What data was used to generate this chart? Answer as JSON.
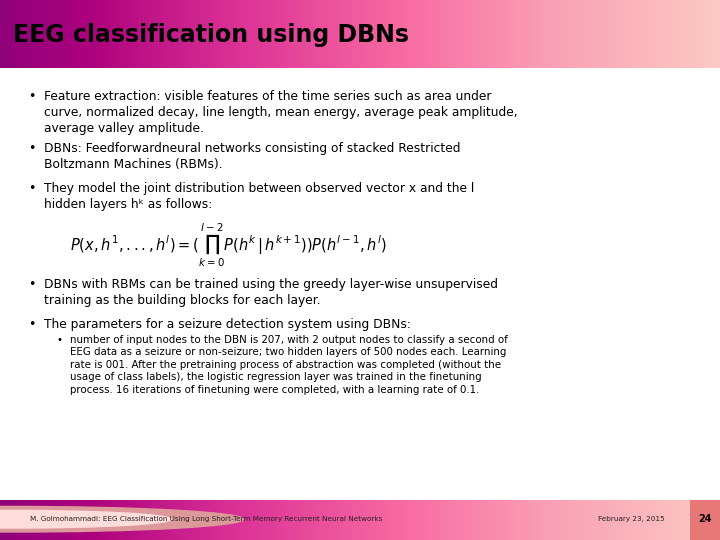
{
  "title": "EEG classification using DBNs",
  "background_color": "#ffffff",
  "title_pink": "#f08080",
  "footer_pink": "#f0a0a0",
  "footer_text": "M. Golmohammadi: EEG Classification Using Long Short-Term Memory Recurrent Neural Networks",
  "footer_date": "February 23, 2015",
  "footer_page": "24",
  "b1_line1": "Feature extraction: visible features of the time series such as area under",
  "b1_line2": "curve, normalized decay, line length, mean energy, average peak amplitude,",
  "b1_line3": "average valley amplitude.",
  "b2_line1": "DBNs: Feedforwardneural networks consisting of stacked Restricted",
  "b2_line2": "Boltzmann Machines (RBMs).",
  "b3_line1": "They model the joint distribution between observed vector x and the l",
  "b3_line2": "hidden layers hᵏ as follows:",
  "b4_line1": "DBNs with RBMs can be trained using the greedy layer-wise unsupervised",
  "b4_line2": "training as the building blocks for each layer.",
  "b5_line1": "The parameters for a seizure detection system using DBNs:",
  "sub_line1": "number of input nodes to the DBN is 207, with 2 output nodes to classify a second of",
  "sub_line2": "EEG data as a seizure or non-seizure; two hidden layers of 500 nodes each. Learning",
  "sub_line3": "rate is 001. After the pretraining process of abstraction was completed (without the",
  "sub_line4": "usage of class labels), the logistic regression layer was trained in the finetuning",
  "sub_line5": "process. 16 iterations of finetuning were completed, with a learning rate of 0.1."
}
